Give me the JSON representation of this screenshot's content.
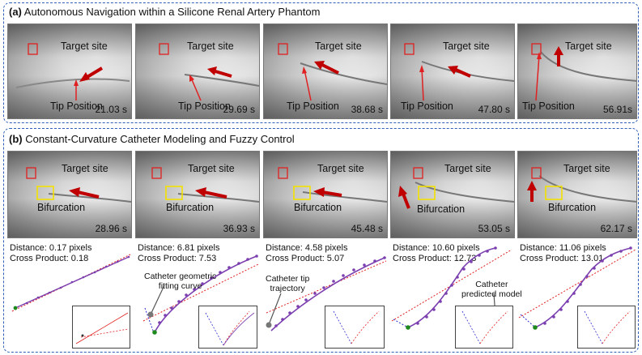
{
  "panel_a": {
    "title_tag": "(a)",
    "title": "Autonomous Navigation within a Silicone Renal Artery Phantom",
    "frames": [
      {
        "time": "21.03 s",
        "target": "Target site",
        "tip": "Tip Position"
      },
      {
        "time": "29.69 s",
        "target": "Target site",
        "tip": "Tip Position"
      },
      {
        "time": "38.68 s",
        "target": "Target site",
        "tip": "Tip Position"
      },
      {
        "time": "47.80 s",
        "target": "Target site",
        "tip": "Tip Position"
      },
      {
        "time": "56.91s",
        "target": "Target site",
        "tip": "Tip Position"
      }
    ]
  },
  "panel_b": {
    "title_tag": "(b)",
    "title": "Constant-Curvature Catheter Modeling and Fuzzy Control",
    "frames": [
      {
        "time": "28.96 s",
        "target": "Target site",
        "bifurcation": "Bifurcation",
        "distance": "Distance: 0.17 pixels",
        "cross": "Cross Product: 0.18"
      },
      {
        "time": "36.93 s",
        "target": "Target site",
        "bifurcation": "Bifurcation",
        "distance": "Distance: 6.81 pixels",
        "cross": "Cross Product: 7.53"
      },
      {
        "time": "45.48 s",
        "target": "Target site",
        "bifurcation": "Bifurcation",
        "distance": "Distance: 4.58 pixels",
        "cross": "Cross Product: 5.07"
      },
      {
        "time": "53.05 s",
        "target": "Target site",
        "bifurcation": "Bifurcation",
        "distance": "Distance: 10.60 pixels",
        "cross": "Cross Product: 12.73"
      },
      {
        "time": "62.17 s",
        "target": "Target site",
        "bifurcation": "Bifurcation",
        "distance": "Distance: 11.06 pixels",
        "cross": "Cross Product: 13.01"
      }
    ],
    "callouts": {
      "fit_line1": "Catheter geometric",
      "fit_line2": "fitting curve",
      "traj_line1": "Catheter tip",
      "traj_line2": "trajectory",
      "pred_line1": "Catheter",
      "pred_line2": "predicted model"
    }
  },
  "colors": {
    "border": "#2f5fb8",
    "arrow": "#c00000",
    "target_box": "#e02020",
    "bifurcation_box": "#f2e200",
    "curve": "#7b3fb0",
    "model": "#2b2bd0",
    "tangent": "#e02020",
    "tip_dot": "#1e8a1e"
  }
}
